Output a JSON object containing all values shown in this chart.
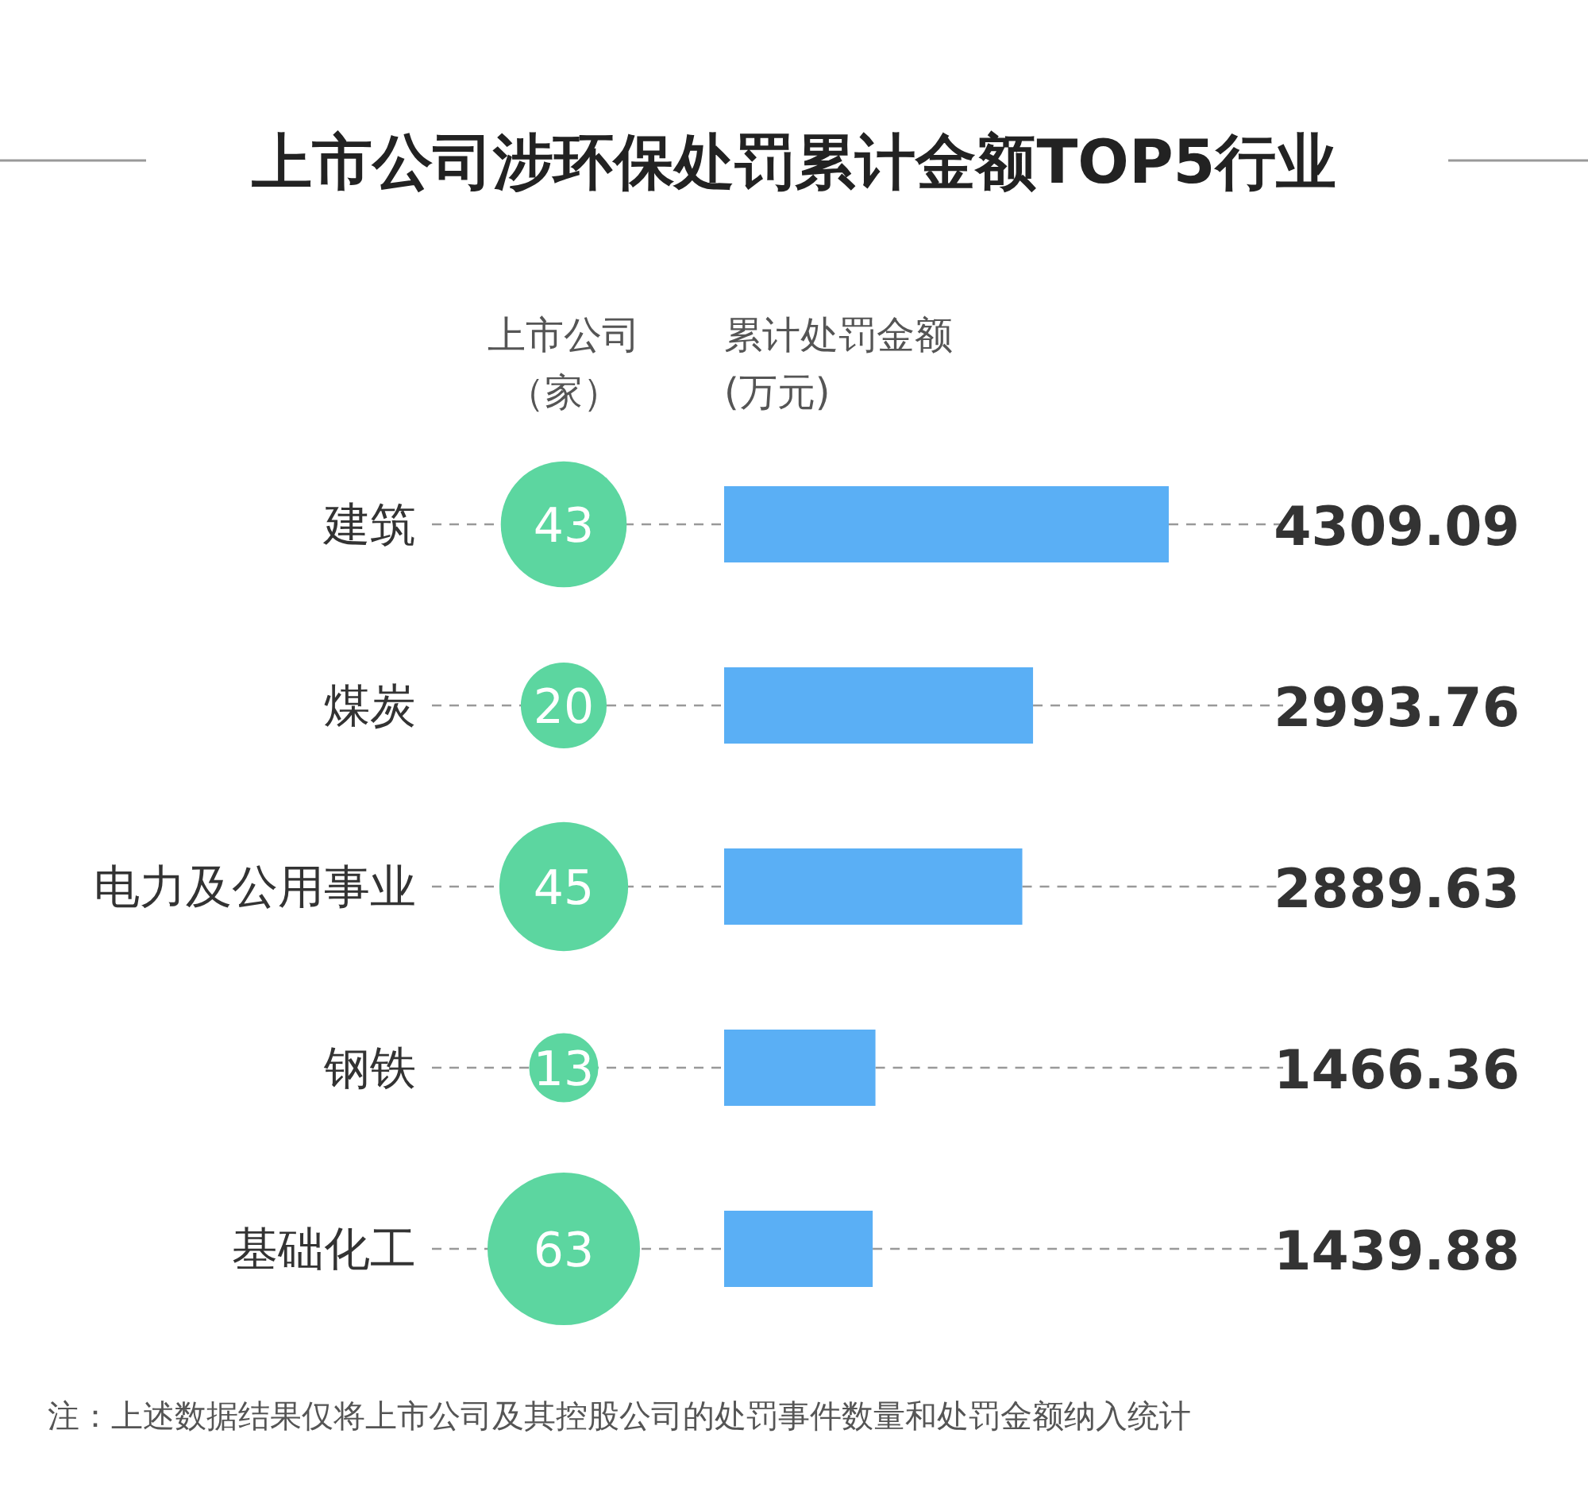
{
  "chart_data": [
    {
      "type": "other",
      "title": "上市公司涉环保处罚累计金额TOP5行业",
      "xlabel": "上市公司（家）",
      "values": [
        43,
        20,
        45,
        13,
        63
      ],
      "color": "#5cd6a0",
      "data_labels": true
    },
    {
      "type": "bar",
      "orientation": "horizontal",
      "xlabel": "累计处罚金额(万元)",
      "categories": [
        "建筑",
        "煤炭",
        "电力及公用事业",
        "钢铁",
        "基础化工"
      ],
      "values": [
        4309.09,
        2993.76,
        2889.63,
        1466.36,
        1439.88
      ],
      "color": "#5aaff5",
      "xlim": [
        0,
        4309.09
      ],
      "data_labels": true,
      "grid": "y",
      "tick_labels": "y",
      "annotations": [
        "注：上述数据结果仅将上市公司及其控股公司的处罚事件数量和处罚金额纳入统计"
      ]
    }
  ]
}
